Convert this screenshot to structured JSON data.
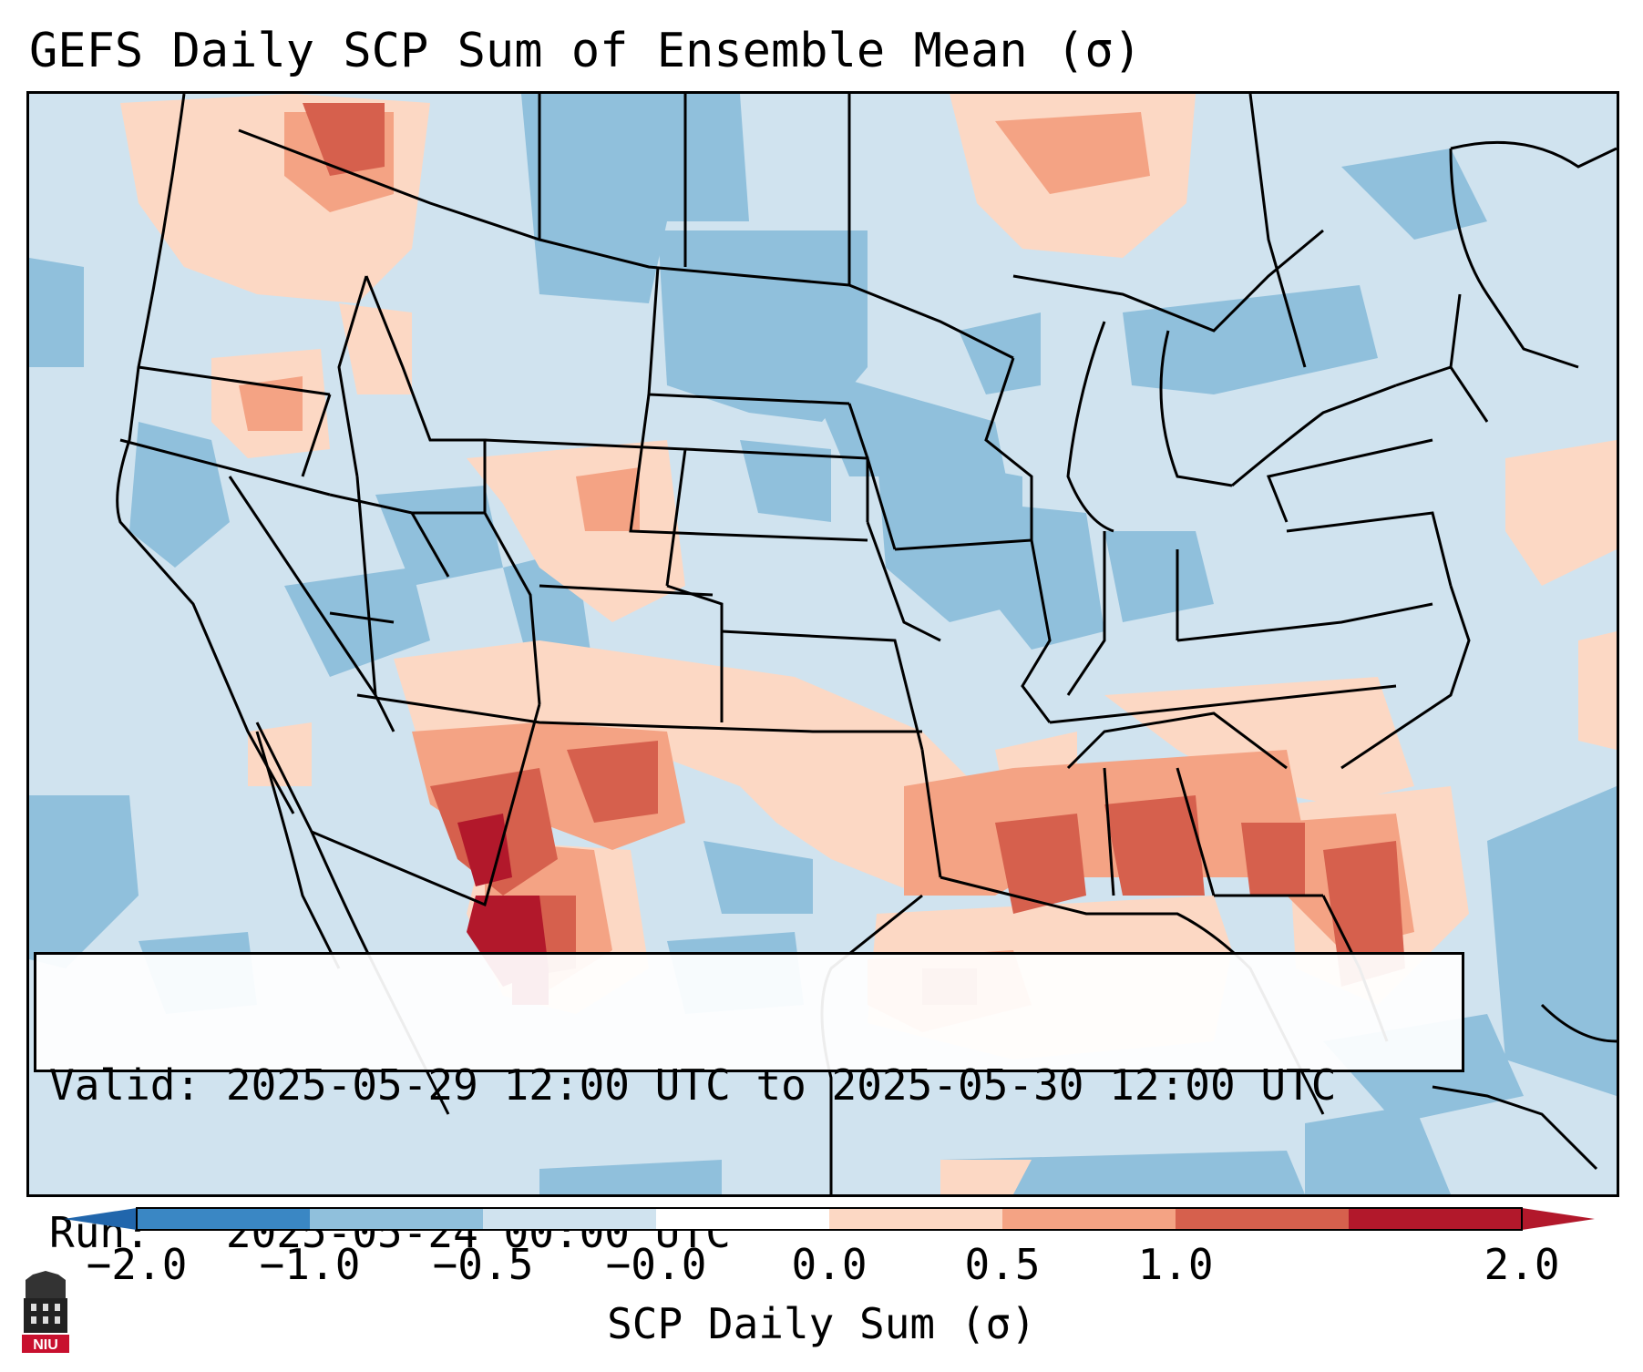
{
  "title": "GEFS Daily SCP Sum of Ensemble Mean (σ)",
  "info": {
    "valid_label": "Valid:",
    "valid_value": "2025-05-29 12:00 UTC to 2025-05-30 12:00 UTC",
    "run_label": "Run:",
    "run_value": "2025-05-24 00:00 UTC"
  },
  "colorbar": {
    "label": "SCP Daily Sum (σ)",
    "ticks": [
      "−2.0",
      "−1.0",
      "−0.5",
      "−0.0",
      "0.0",
      "0.5",
      "1.0",
      "2.0"
    ],
    "colors": [
      "#3a87c4",
      "#90c0dc",
      "#d0e3ef",
      "#ffffff",
      "#fcd8c4",
      "#f4a384",
      "#d6604d",
      "#b2182b"
    ],
    "under_color": "#2166ac",
    "over_color": "#b2182b"
  },
  "logo": {
    "text": "NIU",
    "color": "#c8102e"
  },
  "map": {
    "background": "#d0e3ef",
    "field_description_colors": {
      "light_blue": "#d0e3ef",
      "mid_blue": "#90c0dc",
      "light_red": "#fcd8c4",
      "mid_red": "#f4a384",
      "strong_red": "#d6604d",
      "dark_red": "#b2182b"
    }
  }
}
